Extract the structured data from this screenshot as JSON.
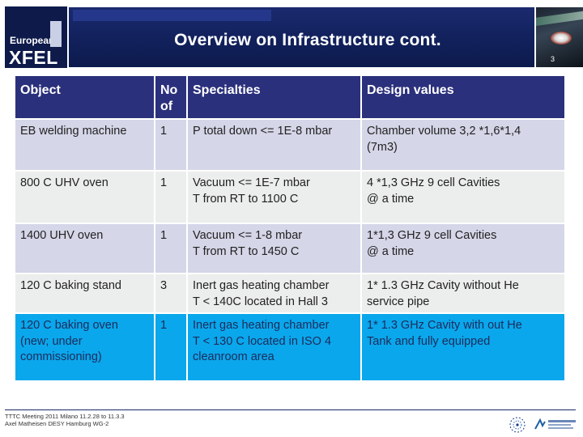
{
  "header": {
    "title": "Overview on Infrastructure cont.",
    "page_number": "3",
    "logo": {
      "line1": "European",
      "line2": "XFEL"
    }
  },
  "table": {
    "columns": [
      "Object",
      "No of",
      "Specialties",
      "Design values"
    ],
    "rows": [
      {
        "object": [
          "EB welding machine"
        ],
        "count": "1",
        "specialties": [
          "P total down <= 1E-8 mbar"
        ],
        "design": [
          "Chamber volume 3,2 *1,6*1,4",
          "(7m3)"
        ]
      },
      {
        "object": [
          "800 C UHV oven"
        ],
        "count": "1",
        "specialties": [
          "Vacuum <= 1E-7 mbar",
          "T from RT to 1100 C"
        ],
        "design": [
          "4 *1,3 GHz 9 cell Cavities",
          "@ a time"
        ]
      },
      {
        "object": [
          "1400 UHV oven"
        ],
        "count": "1",
        "specialties": [
          "Vacuum <= 1-8 mbar",
          "T from RT to 1450 C"
        ],
        "design": [
          "1*1,3 GHz 9 cell Cavities",
          "@ a time"
        ]
      },
      {
        "object": [
          "120 C baking stand"
        ],
        "count": "3",
        "specialties": [
          "Inert gas heating chamber",
          "T < 140C located in Hall 3"
        ],
        "design": [
          "1* 1.3 GHz Cavity without He",
          "service pipe"
        ]
      },
      {
        "object": [
          "120 C baking oven",
          "(new; under",
          "commissioning)"
        ],
        "count": "1",
        "specialties": [
          "Inert gas heating chamber",
          "T < 130 C located in ISO 4",
          "cleanroom area"
        ],
        "design": [
          "1* 1.3 GHz Cavity with out He",
          "Tank and fully equipped"
        ]
      }
    ]
  },
  "footer": {
    "line1": "TTTC Meeting 2011 Milano 11.2.28 to 11.3.3",
    "line2": "Axel Matheisen DESY Hamburg WG-2"
  },
  "colors": {
    "banner": "#11205a",
    "header_row": "#2b307c",
    "row_light": "#d5d6e8",
    "row_grey": "#eceded",
    "row_highlight": "#0aa7ec"
  }
}
